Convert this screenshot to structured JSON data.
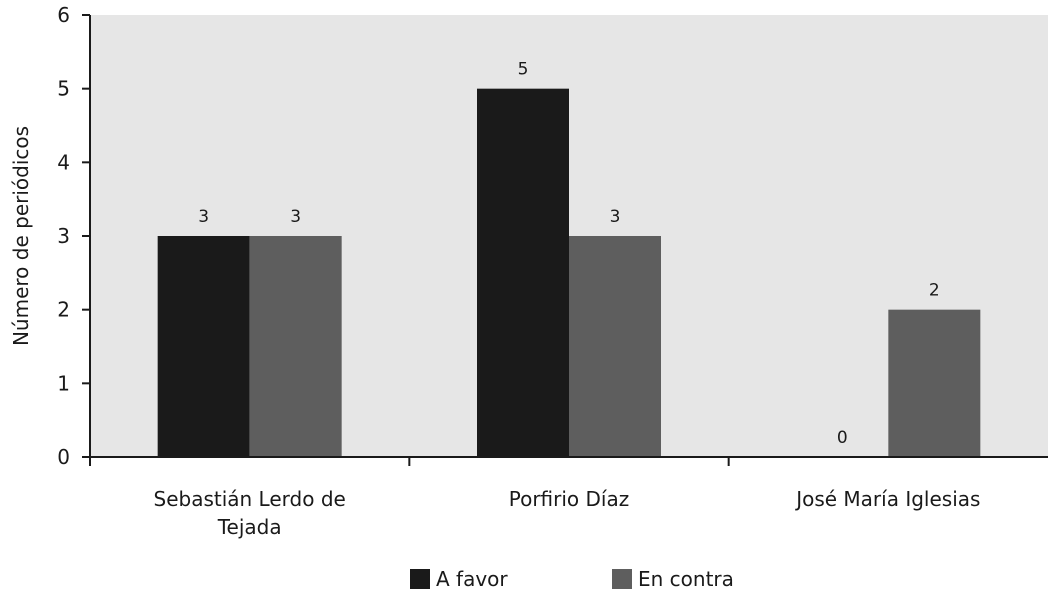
{
  "chart_data": {
    "type": "bar",
    "categories": [
      "Sebastián Lerdo de Tejada",
      "Porfirio Díaz",
      "José María Iglesias"
    ],
    "series": [
      {
        "name": "A favor",
        "values": [
          3,
          5,
          0
        ],
        "color": "#1a1a1a"
      },
      {
        "name": "En contra",
        "values": [
          3,
          3,
          2
        ],
        "color": "#5e5e5e"
      }
    ],
    "data_labels": [
      [
        "3",
        "5",
        "0"
      ],
      [
        "3",
        "3",
        "2"
      ]
    ],
    "title": "",
    "xlabel": "",
    "ylabel": "Número de periódicos",
    "ylim": [
      0,
      6
    ],
    "yticks": [
      "0",
      "1",
      "2",
      "3",
      "4",
      "5",
      "6"
    ],
    "grid": false,
    "legend_position": "bottom-center",
    "plot_background": "#e6e6e6"
  }
}
